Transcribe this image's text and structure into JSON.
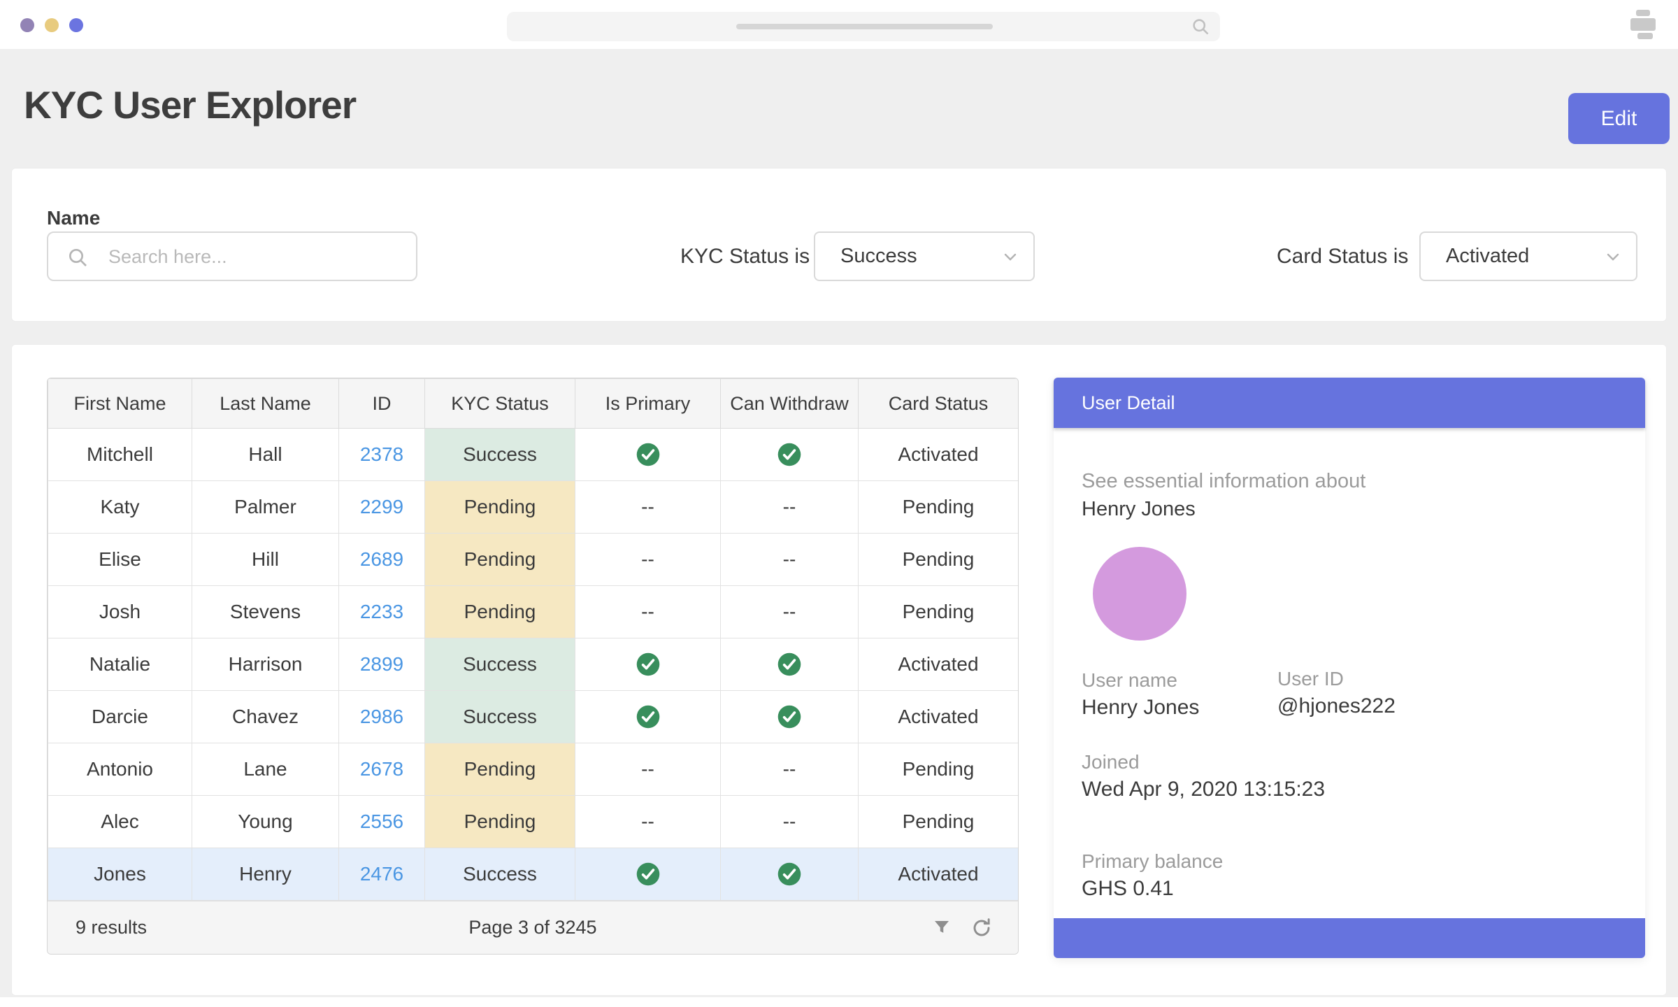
{
  "colors": {
    "accent": "#6673de",
    "link": "#4a96e3",
    "success_bg": "#dcebe2",
    "pending_bg": "#f6e8c2",
    "selected_row": "#e4eefb",
    "check_green": "#388e5c",
    "avatar": "#d49ade",
    "muted": "#9b9b9b",
    "border": "#d9d9d9",
    "page_bg": "#efefef"
  },
  "browser": {
    "traffic_lights": [
      "#9283b5",
      "#e8cb7f",
      "#6b74e0"
    ]
  },
  "header": {
    "title": "KYC User Explorer",
    "edit_button": "Edit"
  },
  "filters": {
    "name_label": "Name",
    "search_placeholder": "Search here...",
    "kyc_label": "KYC Status is",
    "kyc_value": "Success",
    "card_label": "Card Status is",
    "card_value": "Activated"
  },
  "table": {
    "columns": [
      "First Name",
      "Last Name",
      "ID",
      "KYC Status",
      "Is Primary",
      "Can Withdraw",
      "Card Status"
    ],
    "rows": [
      {
        "first": "Mitchell",
        "last": "Hall",
        "id": "2378",
        "kyc": "Success",
        "primary": true,
        "withdraw": true,
        "card": "Activated",
        "selected": false
      },
      {
        "first": "Katy",
        "last": "Palmer",
        "id": "2299",
        "kyc": "Pending",
        "primary": false,
        "withdraw": false,
        "card": "Pending",
        "selected": false
      },
      {
        "first": "Elise",
        "last": "Hill",
        "id": "2689",
        "kyc": "Pending",
        "primary": false,
        "withdraw": false,
        "card": "Pending",
        "selected": false
      },
      {
        "first": "Josh",
        "last": "Stevens",
        "id": "2233",
        "kyc": "Pending",
        "primary": false,
        "withdraw": false,
        "card": "Pending",
        "selected": false
      },
      {
        "first": "Natalie",
        "last": "Harrison",
        "id": "2899",
        "kyc": "Success",
        "primary": true,
        "withdraw": true,
        "card": "Activated",
        "selected": false
      },
      {
        "first": "Darcie",
        "last": "Chavez",
        "id": "2986",
        "kyc": "Success",
        "primary": true,
        "withdraw": true,
        "card": "Activated",
        "selected": false
      },
      {
        "first": "Antonio",
        "last": "Lane",
        "id": "2678",
        "kyc": "Pending",
        "primary": false,
        "withdraw": false,
        "card": "Pending",
        "selected": false
      },
      {
        "first": "Alec",
        "last": "Young",
        "id": "2556",
        "kyc": "Pending",
        "primary": false,
        "withdraw": false,
        "card": "Pending",
        "selected": false
      },
      {
        "first": "Jones",
        "last": "Henry",
        "id": "2476",
        "kyc": "Success",
        "primary": true,
        "withdraw": true,
        "card": "Activated",
        "selected": true
      }
    ],
    "empty_mark": "--",
    "footer": {
      "results": "9 results",
      "page": "Page 3 of 3245"
    }
  },
  "detail": {
    "title": "User Detail",
    "intro": "See essential information about",
    "intro_name": "Henry Jones",
    "username_label": "User name",
    "username": "Henry Jones",
    "userid_label": "User ID",
    "userid": "@hjones222",
    "joined_label": "Joined",
    "joined": "Wed Apr 9, 2020 13:15:23",
    "balance_label": "Primary balance",
    "balance": "GHS 0.41"
  }
}
